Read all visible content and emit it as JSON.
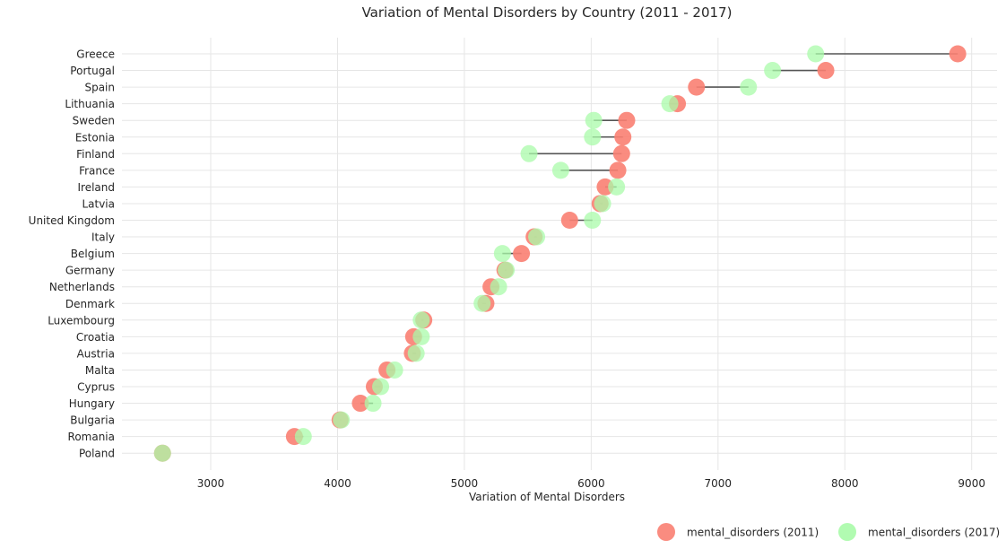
{
  "chart_data": {
    "type": "scatter",
    "title": "Variation of Mental Disorders by Country (2011 - 2017)",
    "xlabel": "Variation of Mental Disorders",
    "ylabel": "",
    "xlim": [
      2300,
      9200
    ],
    "xticks": [
      3000,
      4000,
      5000,
      6000,
      7000,
      8000,
      9000
    ],
    "grid": true,
    "legend_position": "bottom-right",
    "colors": {
      "series_2011": "#fa8072",
      "series_2017": "#a9fba9",
      "connector": "#555555",
      "grid": "#e6e6e6"
    },
    "categories": [
      "Greece",
      "Portugal",
      "Spain",
      "Lithuania",
      "Sweden",
      "Estonia",
      "Finland",
      "France",
      "Ireland",
      "Latvia",
      "United Kingdom",
      "Italy",
      "Belgium",
      "Germany",
      "Netherlands",
      "Denmark",
      "Luxembourg",
      "Croatia",
      "Austria",
      "Malta",
      "Cyprus",
      "Hungary",
      "Bulgaria",
      "Romania",
      "Poland"
    ],
    "series": [
      {
        "name": "mental_disorders (2011)",
        "values": [
          8890,
          7850,
          6830,
          6680,
          6280,
          6250,
          6240,
          6210,
          6110,
          6070,
          5830,
          5550,
          5450,
          5320,
          5210,
          5170,
          4680,
          4600,
          4590,
          4390,
          4290,
          4180,
          4020,
          3660,
          2620
        ]
      },
      {
        "name": "mental_disorders (2017)",
        "values": [
          7770,
          7430,
          7240,
          6620,
          6020,
          6010,
          5510,
          5760,
          6200,
          6090,
          6010,
          5570,
          5300,
          5330,
          5270,
          5140,
          4660,
          4660,
          4620,
          4450,
          4340,
          4280,
          4030,
          3730,
          2620
        ]
      }
    ]
  }
}
